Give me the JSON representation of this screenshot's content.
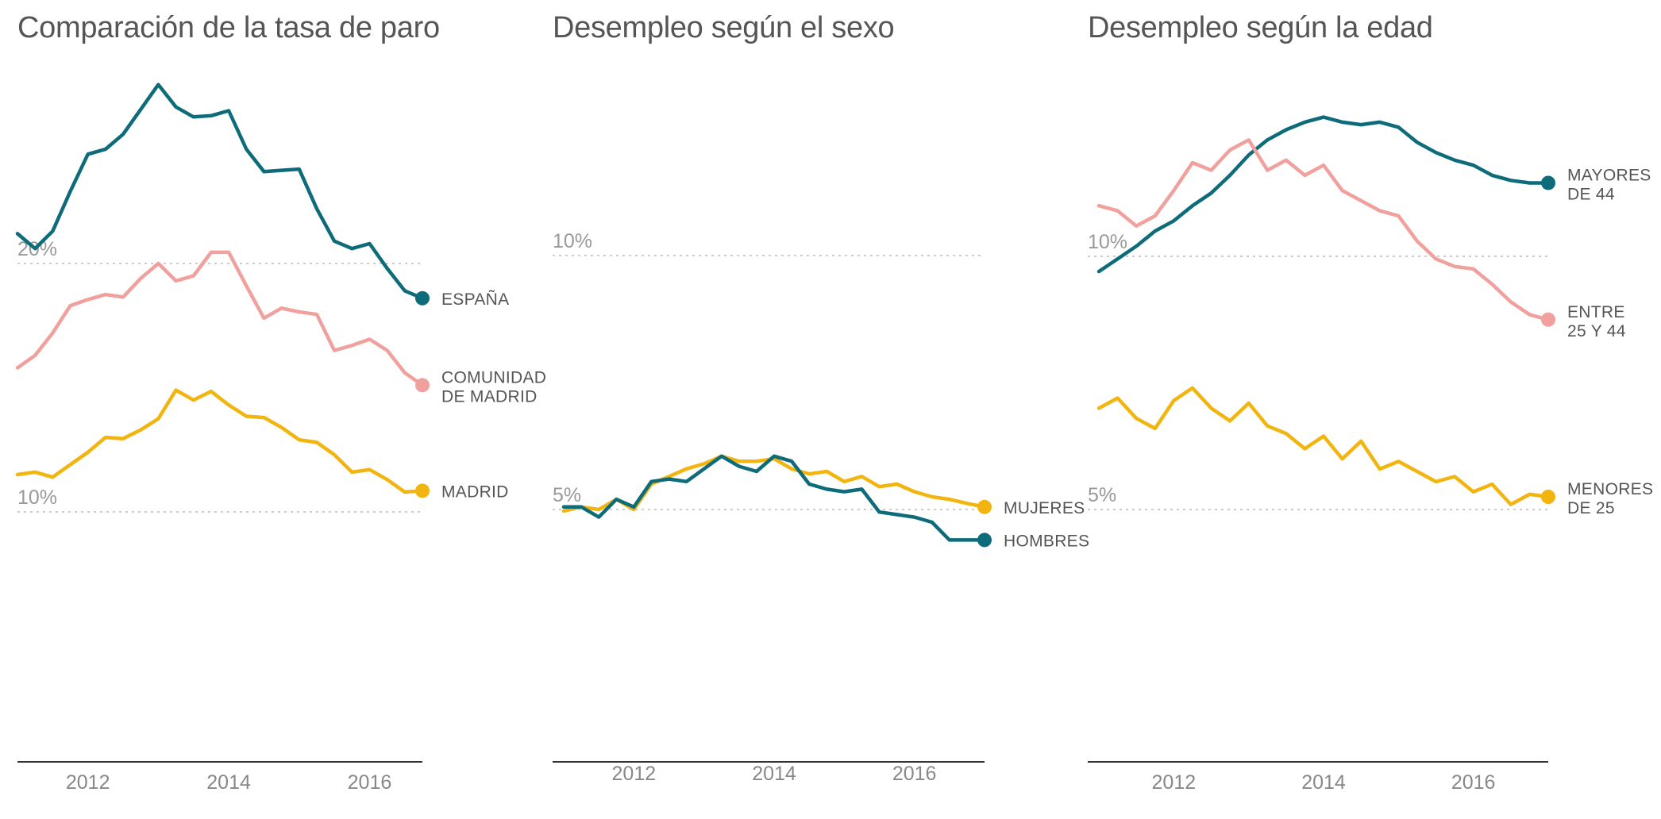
{
  "colors": {
    "teal": "#0e6b7a",
    "pink": "#f0a09d",
    "yellow": "#f2b40f",
    "gridline": "#cccccc",
    "axis": "#333333"
  },
  "chart_data": [
    {
      "type": "line",
      "title": "Comparación de la tasa de paro",
      "ytick_labels": [
        {
          "value": 20,
          "label": "20%"
        },
        {
          "value": 10,
          "label": "10%"
        }
      ],
      "xtick_labels": [
        {
          "value": 2012,
          "label": "2012"
        },
        {
          "value": 2014,
          "label": "2014"
        },
        {
          "value": 2016,
          "label": "2016"
        }
      ],
      "xlim": [
        2011.0,
        2016.75
      ],
      "ylim": [
        0,
        30
      ],
      "series": [
        {
          "label_lines": [
            "ESPAÑA"
          ],
          "color": "teal",
          "x": [
            2011.0,
            2011.25,
            2011.5,
            2011.75,
            2012.0,
            2012.25,
            2012.5,
            2012.75,
            2013.0,
            2013.25,
            2013.5,
            2013.75,
            2014.0,
            2014.25,
            2014.5,
            2014.75,
            2015.0,
            2015.25,
            2015.5,
            2015.75,
            2016.0,
            2016.25,
            2016.5,
            2016.75
          ],
          "y": [
            21.2,
            20.6,
            21.3,
            22.9,
            24.4,
            24.6,
            25.2,
            26.2,
            27.2,
            26.3,
            25.9,
            25.95,
            26.15,
            24.6,
            23.7,
            23.75,
            23.8,
            22.2,
            20.9,
            20.6,
            20.8,
            19.8,
            18.9,
            18.6
          ]
        },
        {
          "label_lines": [
            "COMUNIDAD",
            "DE MADRID"
          ],
          "color": "pink",
          "x": [
            2011.0,
            2011.25,
            2011.5,
            2011.75,
            2012.0,
            2012.25,
            2012.5,
            2012.75,
            2013.0,
            2013.25,
            2013.5,
            2013.75,
            2014.0,
            2014.25,
            2014.5,
            2014.75,
            2015.0,
            2015.25,
            2015.5,
            2015.75,
            2016.0,
            2016.25,
            2016.5,
            2016.75
          ],
          "y": [
            15.8,
            16.3,
            17.2,
            18.3,
            18.55,
            18.75,
            18.65,
            19.4,
            20.0,
            19.3,
            19.5,
            20.45,
            20.45,
            19.1,
            17.8,
            18.2,
            18.05,
            17.95,
            16.5,
            16.7,
            16.95,
            16.5,
            15.6,
            15.1
          ]
        },
        {
          "label_lines": [
            "MADRID"
          ],
          "color": "yellow",
          "x": [
            2011.0,
            2011.25,
            2011.5,
            2011.75,
            2012.0,
            2012.25,
            2012.5,
            2012.75,
            2013.0,
            2013.25,
            2013.5,
            2013.75,
            2014.0,
            2014.25,
            2014.5,
            2014.75,
            2015.0,
            2015.25,
            2015.5,
            2015.75,
            2016.0,
            2016.25,
            2016.5,
            2016.75
          ],
          "y": [
            11.5,
            11.6,
            11.4,
            11.9,
            12.4,
            13.0,
            12.95,
            13.3,
            13.75,
            14.9,
            14.5,
            14.85,
            14.3,
            13.85,
            13.8,
            13.4,
            12.9,
            12.8,
            12.3,
            11.6,
            11.7,
            11.3,
            10.8,
            10.85
          ]
        }
      ]
    },
    {
      "type": "line",
      "title": "Desempleo según el sexo",
      "ytick_labels": [
        {
          "value": 10,
          "label": "10%"
        },
        {
          "value": 5,
          "label": "5%"
        }
      ],
      "xtick_labels": [
        {
          "value": 2012,
          "label": "2012"
        },
        {
          "value": 2014,
          "label": "2014"
        },
        {
          "value": 2016,
          "label": "2016"
        }
      ],
      "xlim": [
        2011.0,
        2017.0
      ],
      "ylim": [
        0,
        15
      ],
      "series": [
        {
          "label_lines": [
            "MUJERES"
          ],
          "color": "yellow",
          "x": [
            2011.0,
            2011.25,
            2011.5,
            2011.75,
            2012.0,
            2012.25,
            2012.5,
            2012.75,
            2013.0,
            2013.25,
            2013.5,
            2013.75,
            2014.0,
            2014.25,
            2014.5,
            2014.75,
            2015.0,
            2015.25,
            2015.5,
            2015.75,
            2016.0,
            2016.25,
            2016.5,
            2016.75,
            2017.0
          ],
          "y": [
            4.97,
            5.05,
            5.0,
            5.2,
            5.0,
            5.5,
            5.65,
            5.8,
            5.9,
            6.05,
            5.95,
            5.95,
            6.0,
            5.8,
            5.7,
            5.75,
            5.55,
            5.65,
            5.45,
            5.5,
            5.35,
            5.25,
            5.2,
            5.12,
            5.05
          ]
        },
        {
          "label_lines": [
            "HOMBRES"
          ],
          "color": "teal",
          "x": [
            2011.0,
            2011.25,
            2011.5,
            2011.75,
            2012.0,
            2012.25,
            2012.5,
            2012.75,
            2013.0,
            2013.25,
            2013.5,
            2013.75,
            2014.0,
            2014.25,
            2014.5,
            2014.75,
            2015.0,
            2015.25,
            2015.5,
            2015.75,
            2016.0,
            2016.25,
            2016.5,
            2016.75,
            2017.0
          ],
          "y": [
            5.05,
            5.05,
            4.85,
            5.2,
            5.05,
            5.55,
            5.6,
            5.55,
            5.8,
            6.05,
            5.85,
            5.75,
            6.05,
            5.95,
            5.5,
            5.4,
            5.35,
            5.4,
            4.95,
            4.9,
            4.85,
            4.75,
            4.4,
            4.4,
            4.4
          ]
        }
      ]
    },
    {
      "type": "line",
      "title": "Desempleo según la edad",
      "ytick_labels": [
        {
          "value": 10,
          "label": "10%"
        },
        {
          "value": 5,
          "label": "5%"
        }
      ],
      "xtick_labels": [
        {
          "value": 2012,
          "label": "2012"
        },
        {
          "value": 2014,
          "label": "2014"
        },
        {
          "value": 2016,
          "label": "2016"
        }
      ],
      "xlim": [
        2011.0,
        2017.0
      ],
      "ylim": [
        0,
        15
      ],
      "series": [
        {
          "label_lines": [
            "MAYORES",
            "DE 44"
          ],
          "color": "teal",
          "x": [
            2011.0,
            2011.25,
            2011.5,
            2011.75,
            2012.0,
            2012.25,
            2012.5,
            2012.75,
            2013.0,
            2013.25,
            2013.5,
            2013.75,
            2014.0,
            2014.25,
            2014.5,
            2014.75,
            2015.0,
            2015.25,
            2015.5,
            2015.75,
            2016.0,
            2016.25,
            2016.5,
            2016.75,
            2017.0
          ],
          "y": [
            9.7,
            9.95,
            10.2,
            10.5,
            10.7,
            11.0,
            11.25,
            11.6,
            12.0,
            12.3,
            12.5,
            12.65,
            12.75,
            12.65,
            12.6,
            12.65,
            12.55,
            12.25,
            12.05,
            11.9,
            11.8,
            11.6,
            11.5,
            11.45,
            11.45
          ]
        },
        {
          "label_lines": [
            "ENTRE",
            "25 Y 44"
          ],
          "color": "pink",
          "x": [
            2011.0,
            2011.25,
            2011.5,
            2011.75,
            2012.0,
            2012.25,
            2012.5,
            2012.75,
            2013.0,
            2013.25,
            2013.5,
            2013.75,
            2014.0,
            2014.25,
            2014.5,
            2014.75,
            2015.0,
            2015.25,
            2015.5,
            2015.75,
            2016.0,
            2016.25,
            2016.5,
            2016.75,
            2017.0
          ],
          "y": [
            11.0,
            10.9,
            10.6,
            10.8,
            11.3,
            11.85,
            11.7,
            12.1,
            12.3,
            11.7,
            11.9,
            11.6,
            11.8,
            11.3,
            11.1,
            10.9,
            10.8,
            10.3,
            9.95,
            9.8,
            9.75,
            9.45,
            9.1,
            8.85,
            8.75
          ]
        },
        {
          "label_lines": [
            "MENORES",
            "DE 25"
          ],
          "color": "yellow",
          "x": [
            2011.0,
            2011.25,
            2011.5,
            2011.75,
            2012.0,
            2012.25,
            2012.5,
            2012.75,
            2013.0,
            2013.25,
            2013.5,
            2013.75,
            2014.0,
            2014.25,
            2014.5,
            2014.75,
            2015.0,
            2015.25,
            2015.5,
            2015.75,
            2016.0,
            2016.25,
            2016.5,
            2016.75,
            2017.0
          ],
          "y": [
            7.0,
            7.2,
            6.8,
            6.6,
            7.15,
            7.4,
            7.0,
            6.75,
            7.1,
            6.65,
            6.5,
            6.2,
            6.45,
            6.0,
            6.35,
            5.8,
            5.95,
            5.75,
            5.55,
            5.65,
            5.35,
            5.5,
            5.1,
            5.3,
            5.25
          ]
        }
      ]
    }
  ]
}
